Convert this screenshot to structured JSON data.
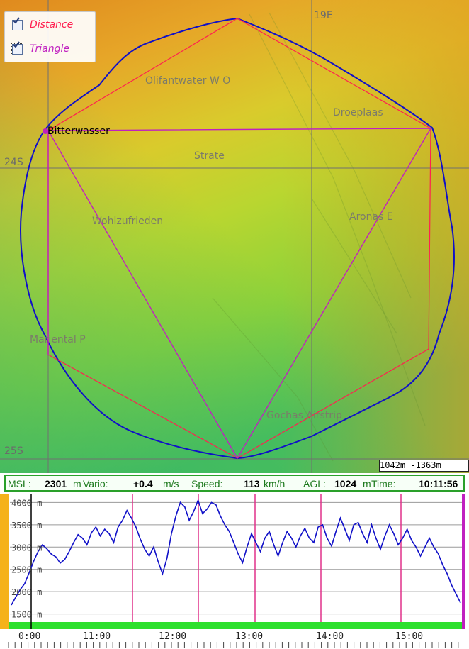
{
  "legend": {
    "items": [
      {
        "label": "Distance",
        "checked": true,
        "color": "#ff2050"
      },
      {
        "label": "Triangle",
        "checked": true,
        "color": "#c020c0"
      }
    ]
  },
  "map": {
    "places": [
      "Olifantwater W O",
      "Droeplaas",
      "Bitterwasser",
      "Strate",
      "Wohlzufrieden",
      "Aronas E",
      "Mariental P",
      "Gochas Airstrip"
    ],
    "coords": {
      "lon_19": "19E",
      "lat_24": "24S",
      "lat_25": "25S"
    },
    "scale": "1042m  -1363m",
    "colors": {
      "track": "#1010c8",
      "distance_line": "#ff2050",
      "triangle_line": "#c020c0"
    }
  },
  "status_bar": {
    "msl_label": "MSL:",
    "msl_value": "2301",
    "msl_unit": "m",
    "vario_label": "Vario:",
    "vario_value": "+0.4",
    "vario_unit": "m/s",
    "speed_label": "Speed:",
    "speed_value": "113",
    "speed_unit": "km/h",
    "agl_label": "AGL:",
    "agl_value": "1024",
    "agl_unit": "m",
    "time_label": "Time:",
    "time_value": "10:11:56"
  },
  "chart_data": {
    "type": "line",
    "y_ticks": [
      "4000 m",
      "3500 m",
      "3000 m",
      "2500 m",
      "2000 m",
      "1500 m"
    ],
    "x_ticks": [
      "0:00",
      "11:00",
      "12:00",
      "13:00",
      "14:00",
      "15:00"
    ],
    "series": [
      {
        "values": [
          1700,
          1880,
          2050,
          2180,
          2420,
          2680,
          2900,
          3050,
          2960,
          2840,
          2780,
          2640,
          2720,
          2900,
          3100,
          3280,
          3200,
          3050,
          3320,
          3450,
          3250,
          3400,
          3300,
          3100,
          3450,
          3600,
          3820,
          3650,
          3450,
          3180,
          2950,
          2800,
          3000,
          2680,
          2400,
          2750,
          3300,
          3700,
          4000,
          3900,
          3600,
          3800,
          4050,
          3750,
          3850,
          4000,
          3950,
          3700,
          3500,
          3350,
          3100,
          2850,
          2650,
          3000,
          3300,
          3100,
          2900,
          3200,
          3350,
          3050,
          2800,
          3100,
          3350,
          3200,
          3000,
          3250,
          3420,
          3200,
          3100,
          3450,
          3500,
          3200,
          3020,
          3350,
          3650,
          3400,
          3150,
          3500,
          3550,
          3300,
          3100,
          3500,
          3200,
          2950,
          3250,
          3500,
          3300,
          3050,
          3200,
          3400,
          3150,
          3000,
          2800,
          3000,
          3200,
          3000,
          2850,
          2600,
          2400,
          2150,
          1950,
          1750
        ]
      }
    ],
    "ylim": [
      1350,
      4150
    ]
  }
}
